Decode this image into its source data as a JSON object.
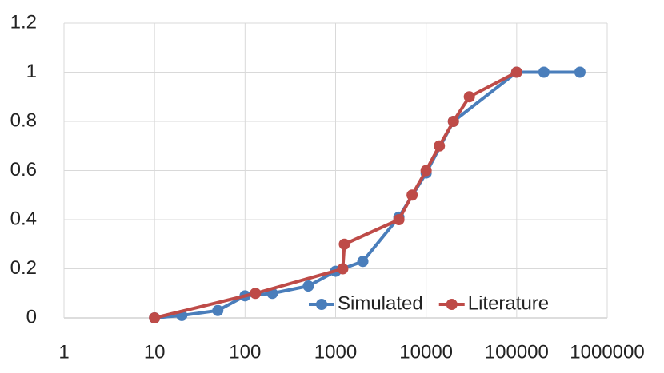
{
  "chart_data": {
    "type": "line",
    "xscale": "log",
    "grid": true,
    "legend": "bottom-right",
    "xlim": [
      1,
      1000000
    ],
    "xticks": [
      1,
      10,
      100,
      1000,
      10000,
      100000,
      1000000
    ],
    "ylim": [
      0,
      1.2
    ],
    "yticks": [
      0,
      0.2,
      0.4,
      0.6,
      0.8,
      1,
      1.2
    ],
    "series": [
      {
        "name": "Simulated",
        "color": "#4a7ebb",
        "x": [
          10,
          20,
          50,
          100,
          200,
          500,
          1000,
          2000,
          5000,
          10000,
          20000,
          100000,
          200000,
          500000
        ],
        "values": [
          0,
          0.01,
          0.03,
          0.09,
          0.1,
          0.13,
          0.19,
          0.23,
          0.41,
          0.59,
          0.8,
          1,
          1,
          1
        ]
      },
      {
        "name": "Literature",
        "color": "#be4b48",
        "x": [
          10,
          130,
          1200,
          1250,
          5000,
          7000,
          10000,
          14000,
          20000,
          30000,
          100000
        ],
        "values": [
          0,
          0.1,
          0.2,
          0.3,
          0.4,
          0.5,
          0.6,
          0.7,
          0.8,
          0.9,
          1
        ]
      }
    ]
  }
}
